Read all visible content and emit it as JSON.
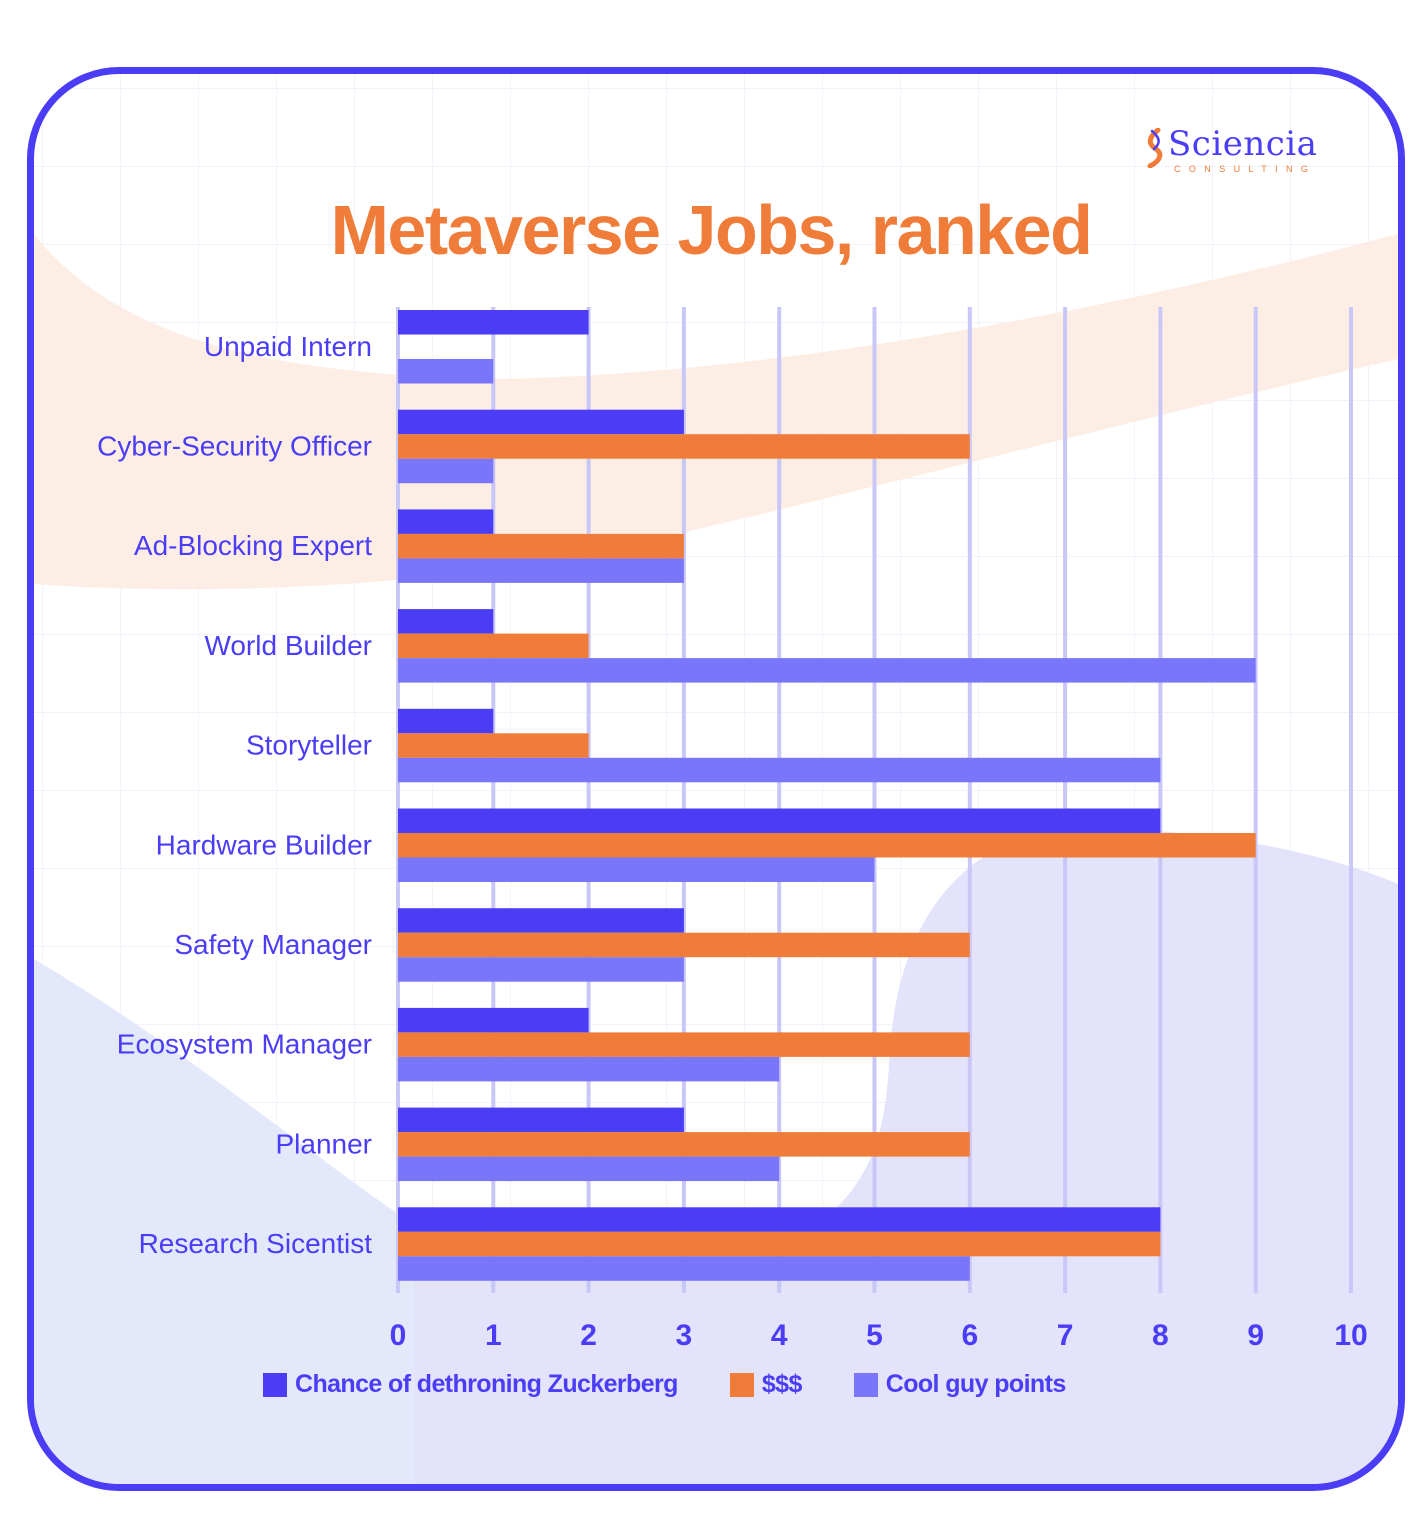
{
  "brand": {
    "name": "Sciencia",
    "tagline": "CONSULTING"
  },
  "chart_data": {
    "type": "bar",
    "orientation": "horizontal",
    "title": "Metaverse Jobs, ranked",
    "xlabel": "",
    "ylabel": "",
    "xlim": [
      0,
      10
    ],
    "xticks": [
      0,
      1,
      2,
      3,
      4,
      5,
      6,
      7,
      8,
      9,
      10
    ],
    "grid": true,
    "legend_position": "bottom",
    "categories": [
      "Unpaid Intern",
      "Cyber-Security Officer",
      "Ad-Blocking Expert",
      "World Builder",
      "Storyteller",
      "Hardware Builder",
      "Safety Manager",
      "Ecosystem Manager",
      "Planner",
      "Research Sicentist"
    ],
    "series": [
      {
        "name": "Chance of dethroning Zuckerberg",
        "color": "#4a3df5",
        "values": [
          2,
          3,
          1,
          1,
          1,
          8,
          3,
          2,
          3,
          8
        ]
      },
      {
        "name": "$$$",
        "color": "#f07c3a",
        "values": [
          0,
          6,
          3,
          2,
          2,
          9,
          6,
          6,
          6,
          8
        ]
      },
      {
        "name": "Cool guy points",
        "color": "#7a76fb",
        "values": [
          1,
          1,
          3,
          9,
          8,
          5,
          3,
          4,
          4,
          6
        ]
      }
    ]
  },
  "colors": {
    "accent": "#4a3df5",
    "brand_orange": "#f07c3a",
    "grid_line": "#c9c7f7"
  }
}
